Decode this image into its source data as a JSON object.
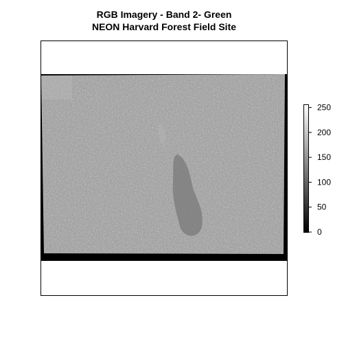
{
  "title_lines": [
    "RGB Imagery - Band 2- Green",
    "NEON Harvard Forest Field Site"
  ],
  "chart_data": {
    "type": "heatmap",
    "title": "RGB Imagery - Band 2- Green\nNEON Harvard Forest Field Site",
    "xlabel": "",
    "ylabel": "",
    "colorbar": {
      "palette": "grayscale",
      "min": 0,
      "max": 255,
      "ticks": [
        0,
        50,
        100,
        150,
        200,
        250
      ],
      "tick_labels": [
        "0",
        "50",
        "100",
        "150",
        "200",
        "250"
      ],
      "placement": "right"
    },
    "grid": false,
    "legend": false
  }
}
